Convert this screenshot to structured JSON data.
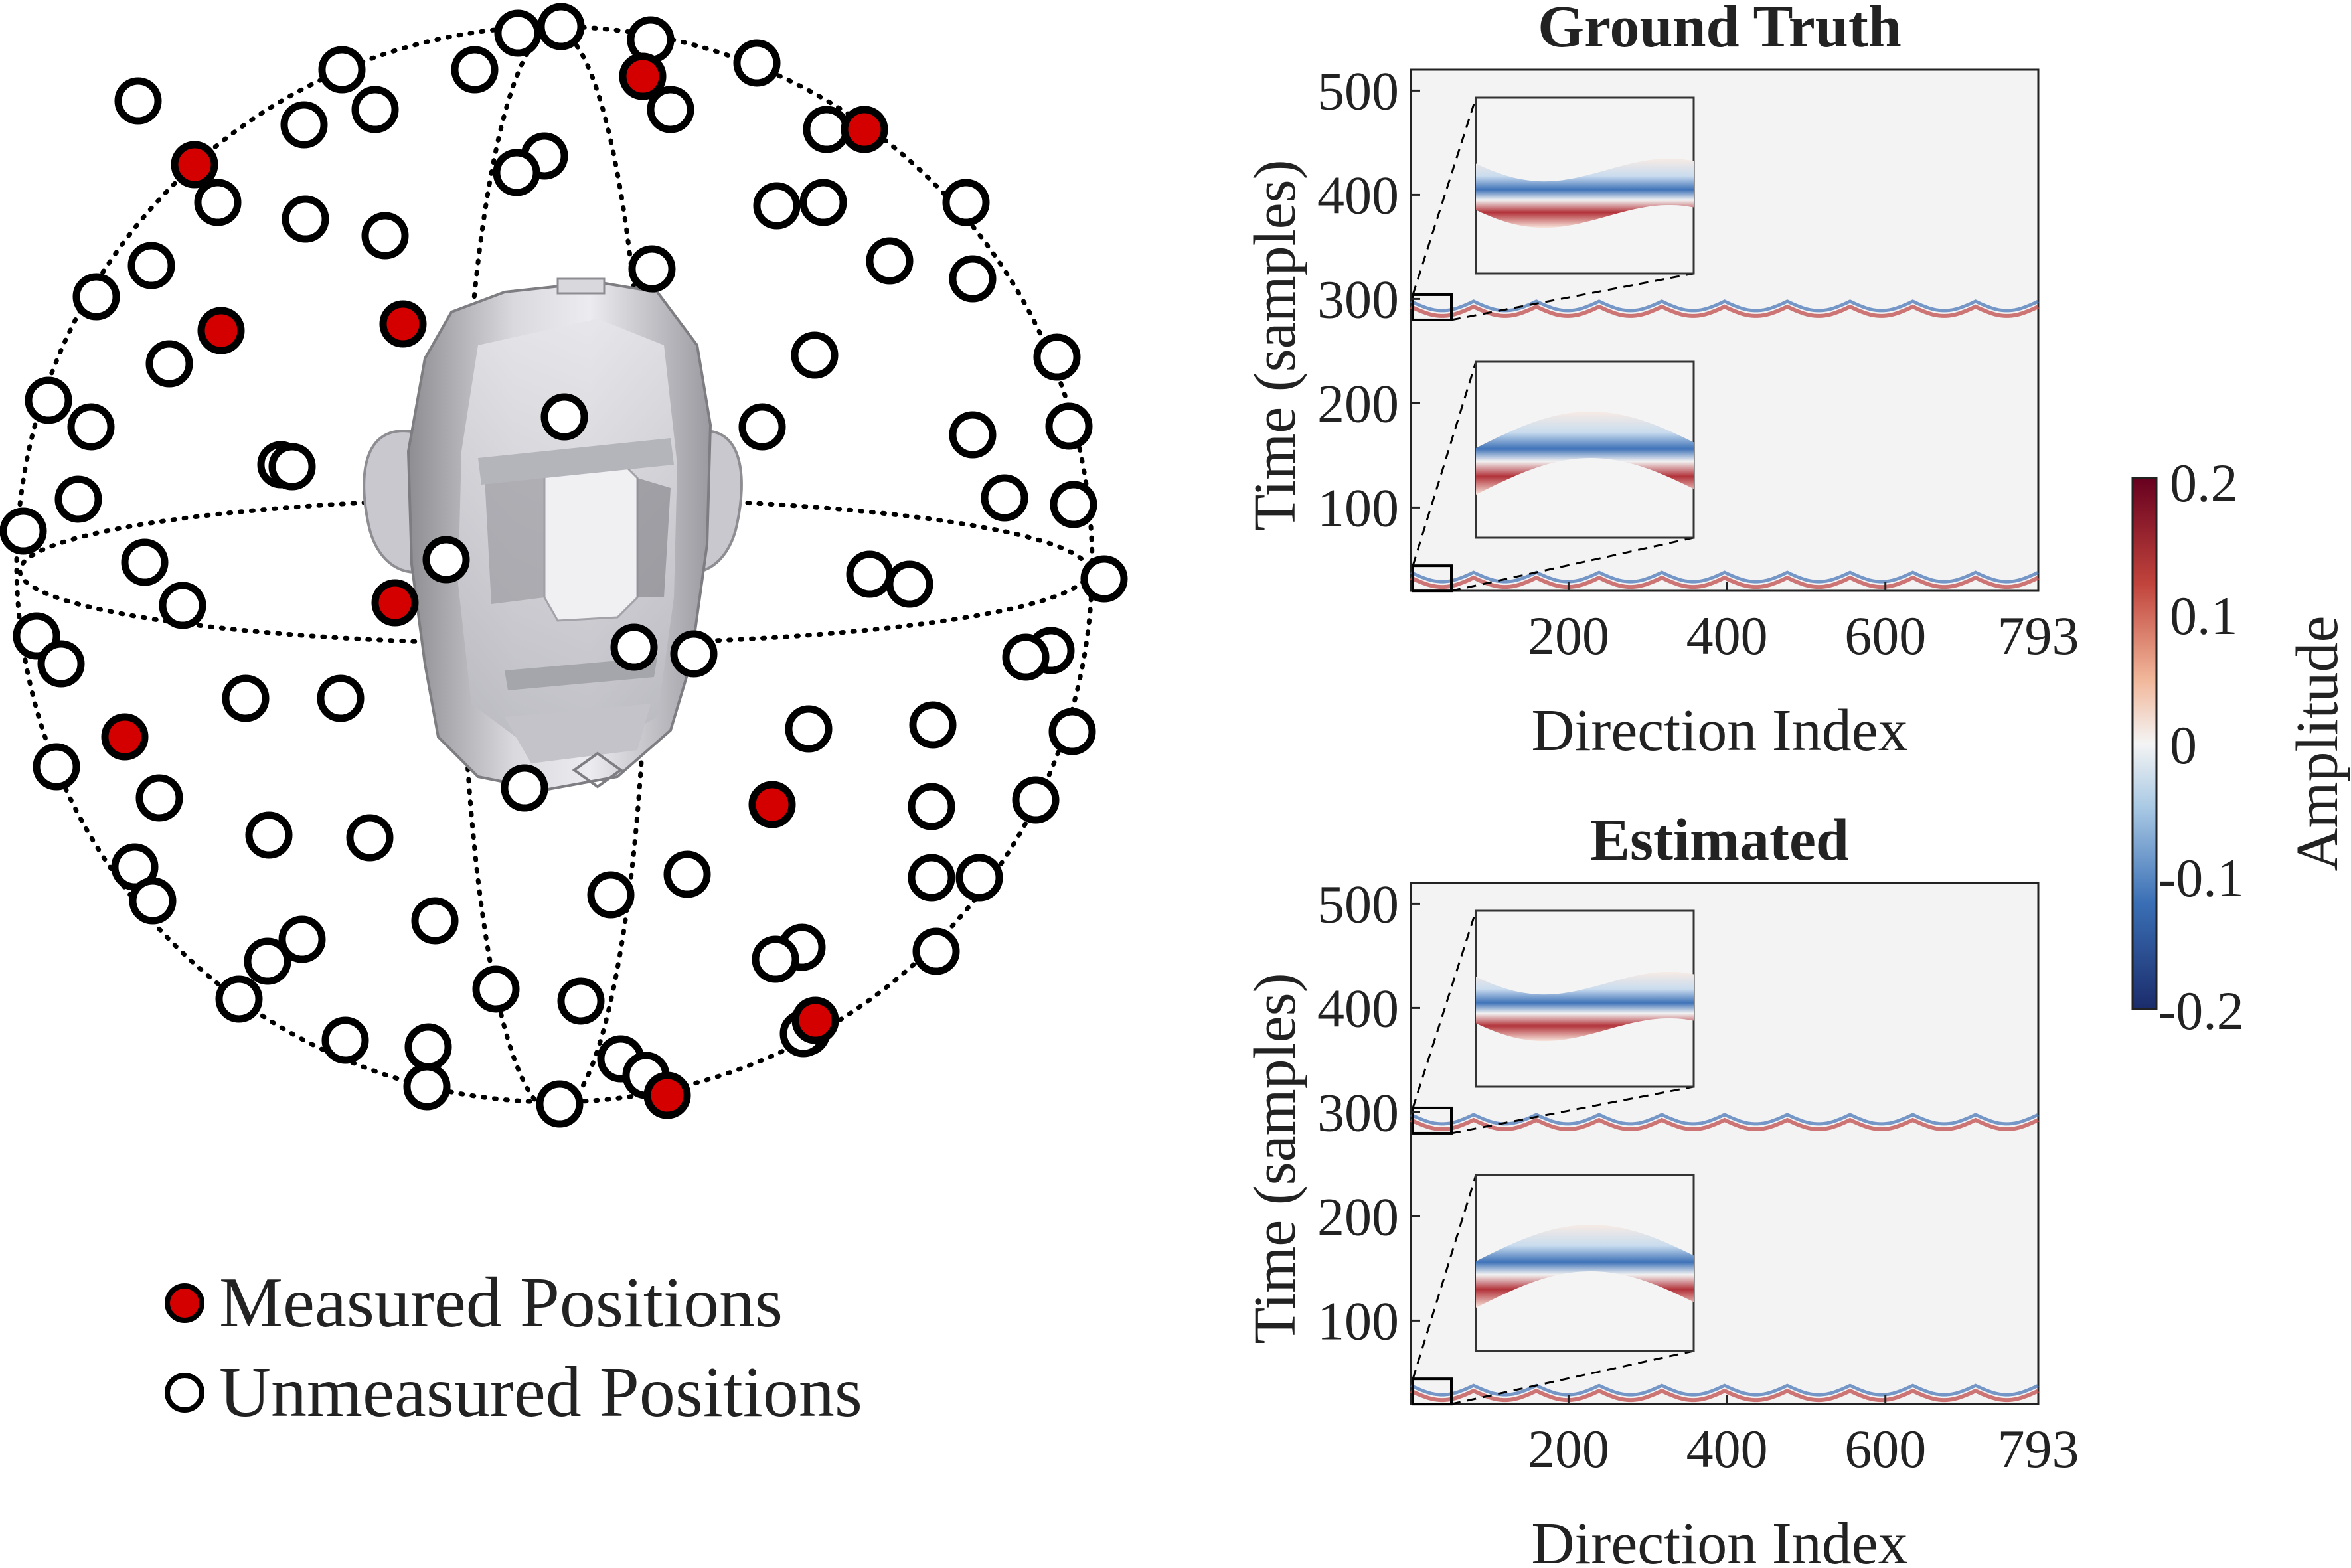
{
  "legend": {
    "measured_label": "Measured Positions",
    "unmeasured_label": "Unmeasured Positions",
    "measured_color": "#d40000",
    "unmeasured_color": "#ffffff"
  },
  "colorbar": {
    "title": "Amplitude",
    "ticks": [
      "0.2",
      "0.1",
      "0",
      "-0.1",
      "-0.2"
    ],
    "cmap": [
      "#1b2c6b",
      "#3a6fb5",
      "#a9c9e4",
      "#f4f4f4",
      "#f1b79a",
      "#c1443c",
      "#67001f"
    ]
  },
  "panels": [
    {
      "title": "Ground Truth",
      "ylabel": "Time (samples)",
      "xlabel": "Direction Index",
      "yticks": [
        "500",
        "400",
        "300",
        "200",
        "100"
      ],
      "xticks": [
        "200",
        "400",
        "600",
        "793"
      ]
    },
    {
      "title": "Estimated",
      "ylabel": "Time (samples)",
      "xlabel": "Direction Index",
      "yticks": [
        "500",
        "400",
        "300",
        "200",
        "100"
      ],
      "xticks": [
        "200",
        "400",
        "600",
        "793"
      ]
    }
  ],
  "icons": {
    "head": "head-model-icon",
    "sphere": "sampling-sphere-icon"
  }
}
